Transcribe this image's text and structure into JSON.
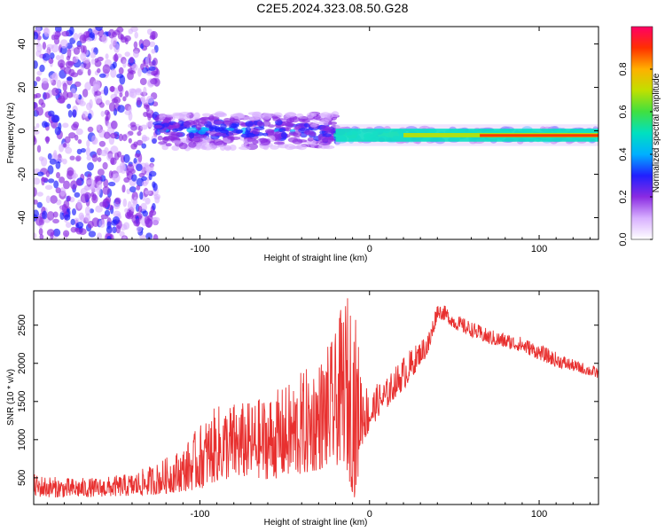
{
  "title": "C2E5.2024.323.08.50.G28",
  "colorbar": {
    "label": "Normalized spectral amplitude",
    "ticks": [
      "0.0",
      "0.2",
      "0.4",
      "0.6",
      "0.8"
    ],
    "stops": [
      "#ffffff",
      "#d8b0ff",
      "#8a2be2",
      "#2020ff",
      "#00b0ff",
      "#00e0c0",
      "#40e040",
      "#c0e000",
      "#ffb000",
      "#ff3000",
      "#ff0066"
    ]
  },
  "chart_data": [
    {
      "type": "heatmap",
      "title": "C2E5.2024.323.08.50.G28",
      "xlabel": "Height of straight line (km)",
      "ylabel": "Frequency (Hz)",
      "xlim": [
        -198,
        135
      ],
      "ylim": [
        -50,
        48
      ],
      "xticks": [
        -100,
        0,
        100
      ],
      "xtick_labels": [
        "-100",
        "0",
        "100"
      ],
      "yticks": [
        -40,
        -20,
        0,
        20,
        40
      ],
      "ytick_labels": [
        "-40",
        "-20",
        "0",
        "20",
        "40"
      ],
      "value_range": [
        0,
        1
      ],
      "series": [
        {
          "x_range": [
            -198,
            -125
          ],
          "description": "scattered low-amplitude noise across full frequency range",
          "amplitude": 0.15
        },
        {
          "x_range": [
            -125,
            -20
          ],
          "frequency_center": 0,
          "frequency_halfwidth": 8,
          "amplitude": 0.3
        },
        {
          "x_range": [
            -20,
            135
          ],
          "frequency_center": -2,
          "frequency_halfwidth": 3,
          "amplitude": 0.6
        },
        {
          "x_range": [
            60,
            135
          ],
          "frequency_center": -2,
          "frequency_halfwidth": 1,
          "amplitude": 0.95
        }
      ]
    },
    {
      "type": "line",
      "xlabel": "Height of straight line (km)",
      "ylabel": "SNR (10 * v/v)",
      "xlim": [
        -198,
        135
      ],
      "ylim": [
        150,
        2950
      ],
      "xticks": [
        -100,
        0,
        100
      ],
      "xtick_labels": [
        "-100",
        "0",
        "100"
      ],
      "yticks": [
        500,
        1000,
        1500,
        2000,
        2500
      ],
      "ytick_labels": [
        "500",
        "1000",
        "1500",
        "2000",
        "2500"
      ],
      "color": "#e8302f",
      "x": [
        -198,
        -180,
        -160,
        -140,
        -125,
        -110,
        -100,
        -90,
        -80,
        -70,
        -60,
        -50,
        -40,
        -30,
        -20,
        -15,
        -10,
        -8,
        -5,
        0,
        5,
        10,
        15,
        20,
        25,
        30,
        35,
        40,
        45,
        50,
        60,
        70,
        80,
        90,
        100,
        110,
        120,
        135
      ],
      "y_low": [
        250,
        240,
        250,
        260,
        280,
        320,
        350,
        450,
        480,
        500,
        480,
        500,
        520,
        600,
        650,
        700,
        300,
        200,
        900,
        1100,
        1300,
        1400,
        1550,
        1650,
        1800,
        2000,
        2100,
        2600,
        2550,
        2450,
        2350,
        2250,
        2200,
        2150,
        2050,
        1950,
        1900,
        1800
      ],
      "y_high": [
        550,
        500,
        500,
        560,
        700,
        900,
        1200,
        1450,
        1500,
        1500,
        1600,
        1700,
        1900,
        2050,
        2400,
        2900,
        2950,
        2600,
        2000,
        1600,
        1750,
        1800,
        1950,
        2100,
        2200,
        2300,
        2450,
        2800,
        2750,
        2650,
        2550,
        2450,
        2400,
        2350,
        2250,
        2150,
        2050,
        1950
      ]
    }
  ]
}
